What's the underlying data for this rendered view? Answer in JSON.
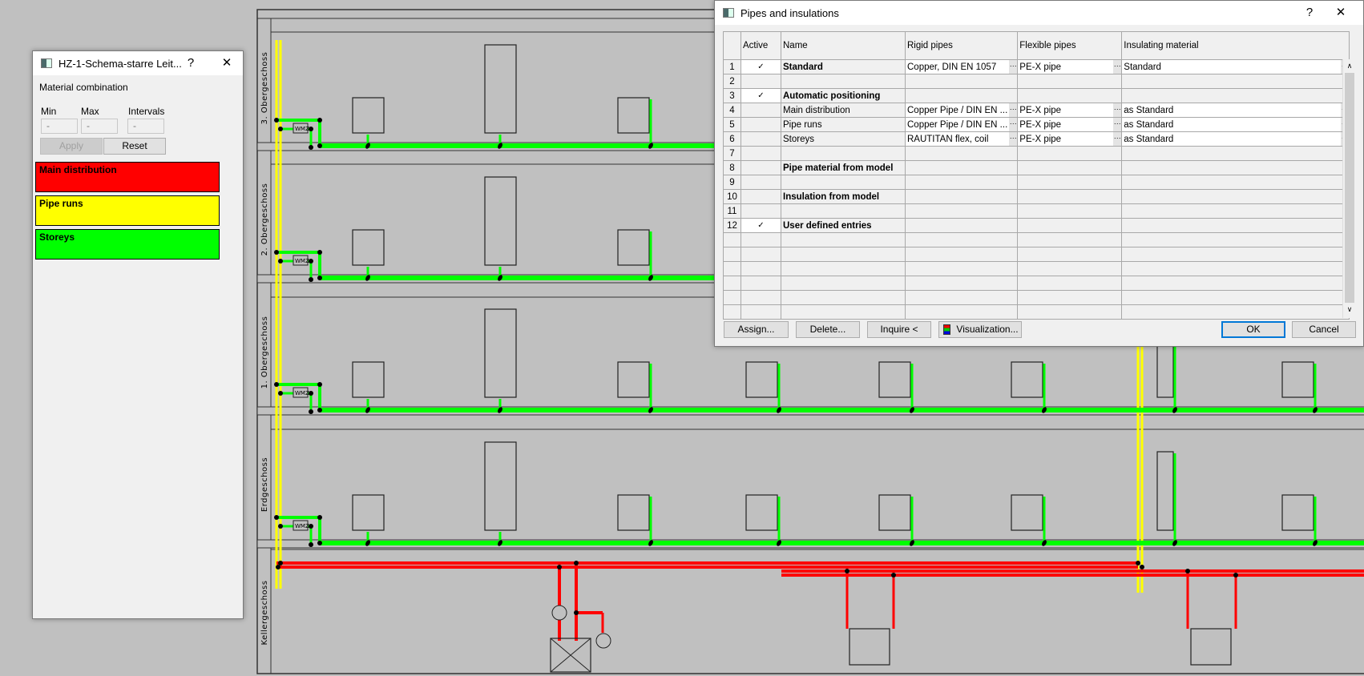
{
  "drawing": {
    "storeys": [
      "3. Obergeschoss",
      "2. Obergeschoss",
      "1. Obergeschoss",
      "Erdgeschoss",
      "Kellergeschoss"
    ],
    "meter_label": "WMZ",
    "colors": {
      "main_distribution": "#ff0000",
      "pipe_runs": "#ffff00",
      "storeys": "#00ff00",
      "background": "#c0c0c0"
    }
  },
  "legend_dialog": {
    "title": "HZ-1-Schema-starre Leit...",
    "help": "?",
    "close": "✕",
    "heading": "Material combination",
    "min_label": "Min",
    "max_label": "Max",
    "intervals_label": "Intervals",
    "min_value": "-",
    "max_value": "-",
    "intervals_value": "-",
    "apply": "Apply",
    "reset": "Reset",
    "entries": [
      {
        "label": "Main distribution",
        "color": "#ff0000"
      },
      {
        "label": "Pipe runs",
        "color": "#ffff00"
      },
      {
        "label": "Storeys",
        "color": "#00ff00"
      }
    ]
  },
  "pipes_dialog": {
    "title": "Pipes and insulations",
    "help": "?",
    "close": "✕",
    "columns": [
      "",
      "Active",
      "Name",
      "Rigid pipes",
      "Flexible pipes",
      "Insulating material"
    ],
    "rows": [
      {
        "n": "1",
        "active": "✓",
        "name": "Standard",
        "bold": true,
        "rigid": "Copper, DIN EN 1057",
        "flex": "PE-X pipe",
        "ins": "Standard"
      },
      {
        "n": "2",
        "active": "",
        "name": "",
        "bold": false,
        "rigid": "",
        "flex": "",
        "ins": ""
      },
      {
        "n": "3",
        "active": "✓",
        "name": "Automatic positioning",
        "bold": true,
        "rigid": "",
        "flex": "",
        "ins": ""
      },
      {
        "n": "4",
        "active": "",
        "name": "Main distribution",
        "bold": false,
        "rigid": "Copper Pipe / DIN EN ...",
        "flex": "PE-X pipe",
        "ins": "as Standard"
      },
      {
        "n": "5",
        "active": "",
        "name": "Pipe runs",
        "bold": false,
        "rigid": "Copper Pipe / DIN EN ...",
        "flex": "PE-X pipe",
        "ins": "as Standard"
      },
      {
        "n": "6",
        "active": "",
        "name": "Storeys",
        "bold": false,
        "rigid": "RAUTITAN flex, coil",
        "flex": "PE-X pipe",
        "ins": "as Standard"
      },
      {
        "n": "7",
        "active": "",
        "name": "",
        "bold": false,
        "rigid": "",
        "flex": "",
        "ins": ""
      },
      {
        "n": "8",
        "active": "",
        "name": "Pipe material from model",
        "bold": true,
        "rigid": "",
        "flex": "",
        "ins": ""
      },
      {
        "n": "9",
        "active": "",
        "name": "",
        "bold": false,
        "rigid": "",
        "flex": "",
        "ins": ""
      },
      {
        "n": "10",
        "active": "",
        "name": "Insulation from model",
        "bold": true,
        "rigid": "",
        "flex": "",
        "ins": ""
      },
      {
        "n": "11",
        "active": "",
        "name": "",
        "bold": false,
        "rigid": "",
        "flex": "",
        "ins": ""
      },
      {
        "n": "12",
        "active": "✓",
        "name": "User defined entries",
        "bold": true,
        "rigid": "",
        "flex": "",
        "ins": ""
      }
    ],
    "buttons": {
      "assign": "Assign...",
      "delete": "Delete...",
      "inquire": "Inquire <",
      "visualization": "Visualization...",
      "ok": "OK",
      "cancel": "Cancel"
    }
  }
}
